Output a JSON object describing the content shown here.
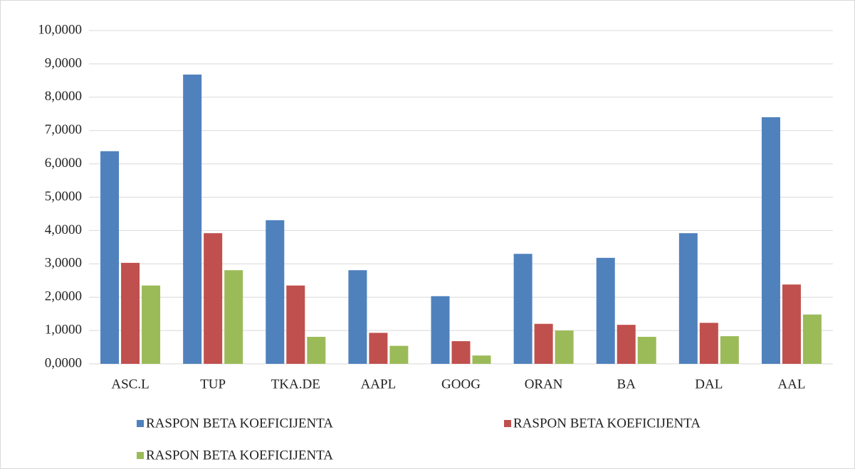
{
  "chart_data": {
    "type": "bar",
    "categories": [
      "ASC.L",
      "TUP",
      "TKA.DE",
      "AAPL",
      "GOOG",
      "ORAN",
      "BA",
      "DAL",
      "AAL"
    ],
    "series": [
      {
        "name": "RASPON BETA KOEFICIJENTA",
        "color": "#4f81bd",
        "values": [
          6.38,
          8.68,
          4.31,
          2.81,
          2.03,
          3.3,
          3.18,
          3.92,
          7.4
        ]
      },
      {
        "name": "RASPON BETA KOEFICIJENTA",
        "color": "#c0504d",
        "values": [
          3.03,
          3.92,
          2.35,
          0.93,
          0.68,
          1.2,
          1.17,
          1.23,
          2.38
        ]
      },
      {
        "name": "RASPON BETA KOEFICIJENTA",
        "color": "#9bbb59",
        "values": [
          2.35,
          2.81,
          0.81,
          0.54,
          0.25,
          1.0,
          0.81,
          0.83,
          1.48
        ]
      }
    ],
    "ylim": [
      0,
      10
    ],
    "yticks": [
      {
        "value": 0,
        "label": "0,0000"
      },
      {
        "value": 1,
        "label": "1,0000"
      },
      {
        "value": 2,
        "label": "2,0000"
      },
      {
        "value": 3,
        "label": "3,0000"
      },
      {
        "value": 4,
        "label": "4,0000"
      },
      {
        "value": 5,
        "label": "5,0000"
      },
      {
        "value": 6,
        "label": "6,0000"
      },
      {
        "value": 7,
        "label": "7,0000"
      },
      {
        "value": 8,
        "label": "8,0000"
      },
      {
        "value": 9,
        "label": "9,0000"
      },
      {
        "value": 10,
        "label": "10,0000"
      }
    ],
    "grid": true,
    "legend": "bottom"
  }
}
